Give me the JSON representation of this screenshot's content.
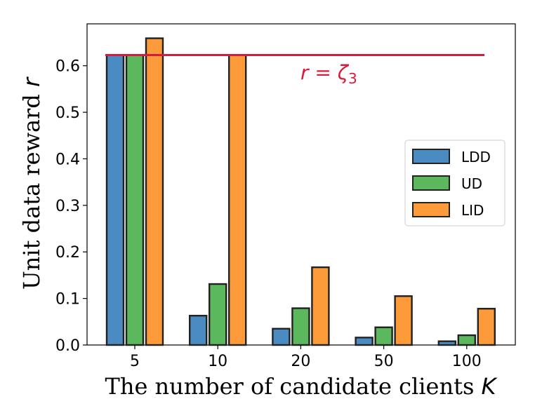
{
  "chart_data": {
    "type": "bar",
    "categories": [
      "5",
      "10",
      "20",
      "50",
      "100"
    ],
    "series": [
      {
        "name": "LDD",
        "color": "#4a8cc1",
        "values": [
          0.623,
          0.063,
          0.035,
          0.016,
          0.008
        ]
      },
      {
        "name": "UD",
        "color": "#5cb85c",
        "values": [
          0.623,
          0.131,
          0.079,
          0.038,
          0.021
        ]
      },
      {
        "name": "LID",
        "color": "#fd9b3a",
        "values": [
          0.659,
          0.623,
          0.167,
          0.105,
          0.078
        ]
      }
    ],
    "xlabel": "The number of candidate clients",
    "xlabel_var": "K",
    "ylabel": "Unit data reward",
    "ylabel_var": "r",
    "ylim": [
      0,
      0.69
    ],
    "yticks": [
      "0.0",
      "0.1",
      "0.2",
      "0.3",
      "0.4",
      "0.5",
      "0.6"
    ],
    "reference_line": {
      "value": 0.623,
      "color": "#d81b3c",
      "label_lhs": "r",
      "label_eq": " = ",
      "label_rhs": "ζ",
      "label_sub": "3"
    },
    "legend_position": "center-right"
  }
}
